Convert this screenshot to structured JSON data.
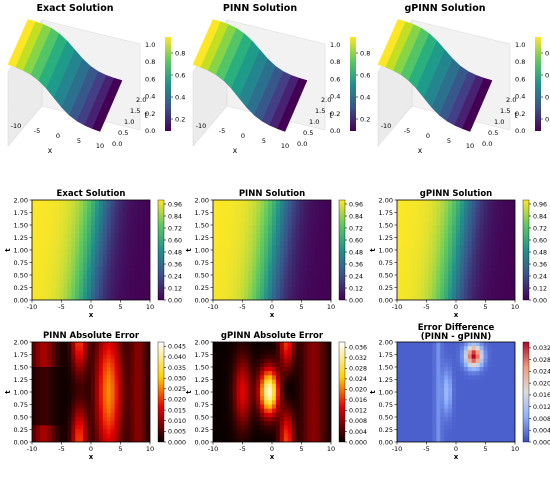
{
  "chart_data": [
    {
      "type": "surface3d",
      "title": "Exact Solution",
      "xlabel": "x",
      "ylabel": "t",
      "xticks": [
        "-10",
        "-5",
        "0",
        "5",
        "10"
      ],
      "yticks": [
        "0.0",
        "0.5",
        "1.0",
        "1.5",
        "2.0"
      ],
      "zticks": [
        "0.0",
        "0.2",
        "0.4",
        "0.6",
        "0.8",
        "1.0"
      ],
      "colorbar_ticks": [
        "0.2",
        "0.4",
        "0.6",
        "0.8"
      ],
      "colormap": "viridis",
      "xlim": [
        -10,
        10
      ],
      "ylim": [
        0,
        2
      ],
      "zlim": [
        0,
        1
      ]
    },
    {
      "type": "surface3d",
      "title": "PINN Solution",
      "xlabel": "x",
      "ylabel": "t",
      "xticks": [
        "-10",
        "-5",
        "0",
        "5",
        "10"
      ],
      "yticks": [
        "0.0",
        "0.5",
        "1.0",
        "1.5",
        "2.0"
      ],
      "zticks": [
        "0.0",
        "0.2",
        "0.4",
        "0.6",
        "0.8",
        "1.0"
      ],
      "colorbar_ticks": [
        "0.2",
        "0.4",
        "0.6",
        "0.8"
      ],
      "colormap": "viridis",
      "xlim": [
        -10,
        10
      ],
      "ylim": [
        0,
        2
      ],
      "zlim": [
        0,
        1
      ]
    },
    {
      "type": "surface3d",
      "title": "gPINN Solution",
      "xlabel": "x",
      "ylabel": "t",
      "xticks": [
        "-10",
        "-5",
        "0",
        "5",
        "10"
      ],
      "yticks": [
        "0.0",
        "0.5",
        "1.0",
        "1.5",
        "2.0"
      ],
      "zticks": [
        "0.0",
        "0.2",
        "0.4",
        "0.6",
        "0.8",
        "1.0"
      ],
      "colorbar_ticks": [
        "0.2",
        "0.4",
        "0.6",
        "0.8"
      ],
      "colormap": "viridis",
      "xlim": [
        -10,
        10
      ],
      "ylim": [
        0,
        2
      ],
      "zlim": [
        0,
        1
      ]
    },
    {
      "type": "heatmap",
      "title": "Exact Solution",
      "xlabel": "x",
      "ylabel": "t",
      "xticks": [
        "-10",
        "-5",
        "0",
        "5",
        "10"
      ],
      "yticks": [
        "0.00",
        "0.25",
        "0.50",
        "0.75",
        "1.00",
        "1.25",
        "1.50",
        "1.75",
        "2.00"
      ],
      "colorbar_ticks": [
        "0.00",
        "0.12",
        "0.24",
        "0.36",
        "0.48",
        "0.60",
        "0.72",
        "0.84",
        "0.96"
      ],
      "colormap": "viridis",
      "xlim": [
        -10,
        10
      ],
      "ylim": [
        0,
        2
      ],
      "clim": [
        0,
        1
      ]
    },
    {
      "type": "heatmap",
      "title": "PINN Solution",
      "xlabel": "x",
      "ylabel": "t",
      "xticks": [
        "-10",
        "-5",
        "0",
        "5",
        "10"
      ],
      "yticks": [
        "0.00",
        "0.25",
        "0.50",
        "0.75",
        "1.00",
        "1.25",
        "1.50",
        "1.75",
        "2.00"
      ],
      "colorbar_ticks": [
        "0.00",
        "0.12",
        "0.24",
        "0.36",
        "0.48",
        "0.60",
        "0.72",
        "0.84",
        "0.96"
      ],
      "colormap": "viridis",
      "xlim": [
        -10,
        10
      ],
      "ylim": [
        0,
        2
      ],
      "clim": [
        0,
        1
      ]
    },
    {
      "type": "heatmap",
      "title": "gPINN Solution",
      "xlabel": "x",
      "ylabel": "t",
      "xticks": [
        "-10",
        "-5",
        "0",
        "5",
        "10"
      ],
      "yticks": [
        "0.00",
        "0.25",
        "0.50",
        "0.75",
        "1.00",
        "1.25",
        "1.50",
        "1.75",
        "2.00"
      ],
      "colorbar_ticks": [
        "0.00",
        "0.12",
        "0.24",
        "0.36",
        "0.48",
        "0.60",
        "0.72",
        "0.84",
        "0.96"
      ],
      "colormap": "viridis",
      "xlim": [
        -10,
        10
      ],
      "ylim": [
        0,
        2
      ],
      "clim": [
        0,
        1
      ]
    },
    {
      "type": "heatmap",
      "title": "PINN Absolute Error",
      "xlabel": "x",
      "ylabel": "t",
      "xticks": [
        "-10",
        "-5",
        "0",
        "5",
        "10"
      ],
      "yticks": [
        "0.00",
        "0.25",
        "0.50",
        "0.75",
        "1.00",
        "1.25",
        "1.50",
        "1.75",
        "2.00"
      ],
      "colorbar_ticks": [
        "0.000",
        "0.005",
        "0.010",
        "0.015",
        "0.020",
        "0.025",
        "0.030",
        "0.035",
        "0.040",
        "0.045"
      ],
      "colormap": "hot",
      "xlim": [
        -10,
        10
      ],
      "ylim": [
        0,
        2
      ],
      "clim": [
        0,
        0.047
      ]
    },
    {
      "type": "heatmap",
      "title": "gPINN Absolute Error",
      "xlabel": "x",
      "ylabel": "t",
      "xticks": [
        "-10",
        "-5",
        "0",
        "5",
        "10"
      ],
      "yticks": [
        "0.00",
        "0.25",
        "0.50",
        "0.75",
        "1.00",
        "1.25",
        "1.50",
        "1.75",
        "2.00"
      ],
      "colorbar_ticks": [
        "0.000",
        "0.004",
        "0.008",
        "0.012",
        "0.016",
        "0.020",
        "0.024",
        "0.028",
        "0.032",
        "0.036"
      ],
      "colormap": "hot",
      "xlim": [
        -10,
        10
      ],
      "ylim": [
        0,
        2
      ],
      "clim": [
        0,
        0.038
      ]
    },
    {
      "type": "heatmap",
      "title": "Error Difference",
      "subtitle": "(PINN - gPINN)",
      "xlabel": "x",
      "ylabel": "t",
      "xticks": [
        "-10",
        "-5",
        "0",
        "5",
        "10"
      ],
      "yticks": [
        "0.00",
        "0.25",
        "0.50",
        "0.75",
        "1.00",
        "1.25",
        "1.50",
        "1.75",
        "2.00"
      ],
      "colorbar_ticks": [
        "0.000",
        "0.004",
        "0.008",
        "0.012",
        "0.016",
        "0.020",
        "0.024",
        "0.028",
        "0.032"
      ],
      "colormap": "coolwarm",
      "xlim": [
        -10,
        10
      ],
      "ylim": [
        0,
        2
      ],
      "clim": [
        0,
        0.034
      ]
    }
  ]
}
